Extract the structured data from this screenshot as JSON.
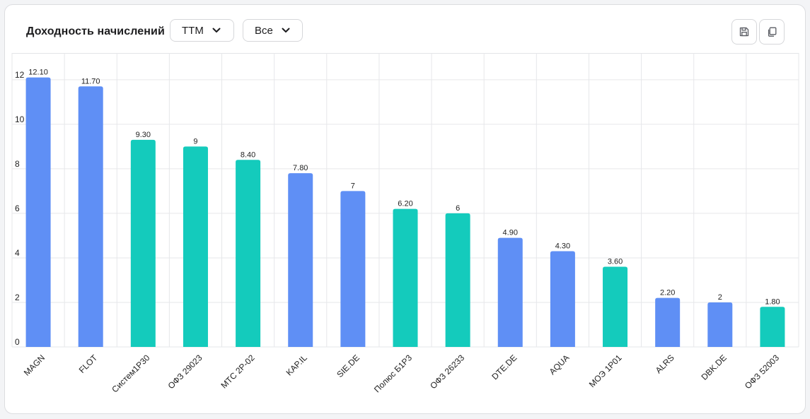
{
  "header": {
    "title": "Доходность начислений",
    "period_dropdown": "TTM",
    "filter_dropdown": "Все",
    "save_icon": "save-icon",
    "copy_icon": "copy-icon"
  },
  "colors": {
    "blue": "#5f8ff5",
    "teal": "#14cbbc",
    "grid": "#e6e7ea",
    "text": "#1f1f1f"
  },
  "chart_data": {
    "type": "bar",
    "title": "",
    "xlabel": "",
    "ylabel": "",
    "ylim": [
      0,
      13.2
    ],
    "yticks": [
      0,
      2,
      4,
      6,
      8,
      10,
      12
    ],
    "grid": true,
    "categories": [
      "MAGN",
      "FLOT",
      "Систем1P30",
      "ОФЗ 29023",
      "МТС 2P-02",
      "KAP.IL",
      "SIE.DE",
      "Полюс Б1Р3",
      "ОФЗ 26233",
      "DTE.DE",
      "AQUA",
      "МОЭ 1P01",
      "ALRS",
      "DBK.DE",
      "ОФЗ 52003"
    ],
    "values": [
      12.1,
      11.7,
      9.3,
      9,
      8.4,
      7.8,
      7,
      6.2,
      6,
      4.9,
      4.3,
      3.6,
      2.2,
      2,
      1.8
    ],
    "value_labels": [
      "12.10",
      "11.70",
      "9.30",
      "9",
      "8.40",
      "7.80",
      "7",
      "6.20",
      "6",
      "4.90",
      "4.30",
      "3.60",
      "2.20",
      "2",
      "1.80"
    ],
    "bar_colors": [
      "blue",
      "blue",
      "teal",
      "teal",
      "teal",
      "blue",
      "blue",
      "teal",
      "teal",
      "blue",
      "blue",
      "teal",
      "blue",
      "blue",
      "teal"
    ]
  }
}
